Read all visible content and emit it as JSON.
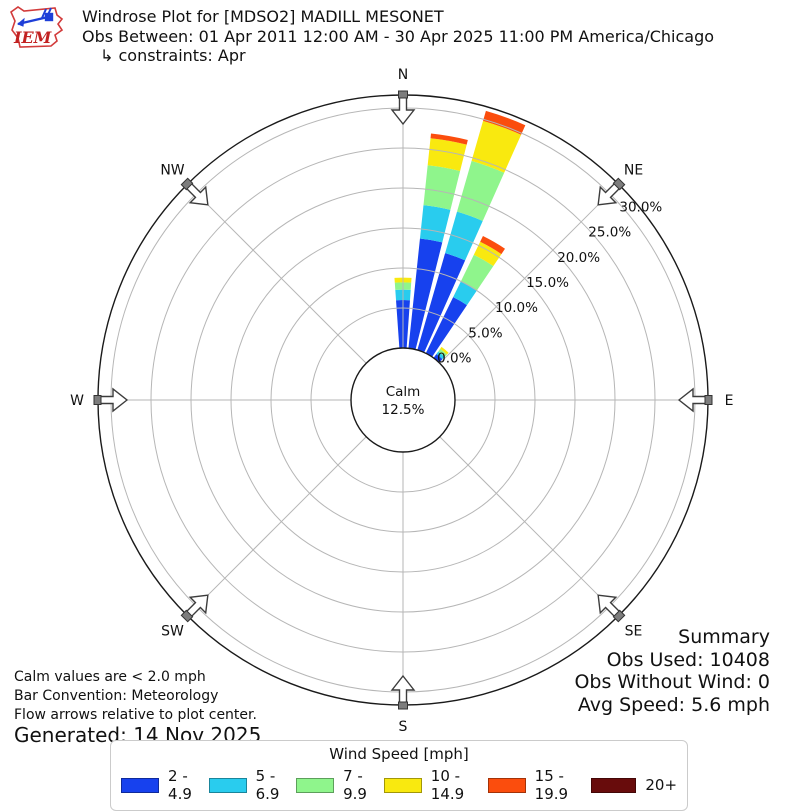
{
  "header": {
    "logo_text": "IEM",
    "title": "Windrose Plot for [MDSO2] MADILL MESONET",
    "subtitle": "Obs Between: 01 Apr 2011 12:00 AM - 30 Apr 2025 11:00 PM America/Chicago",
    "constraints": "↳ constraints: Apr"
  },
  "chart_data": {
    "type": "windrose",
    "units": "mph",
    "calm": {
      "label": "Calm",
      "value": "12.5%"
    },
    "compass_labels": [
      "N",
      "NE",
      "E",
      "SE",
      "S",
      "SW",
      "W",
      "NW"
    ],
    "grid_rings_pct": [
      5,
      10,
      15,
      20,
      25,
      30
    ],
    "ring_ticks": [
      0,
      5,
      10,
      15,
      20,
      25,
      30
    ],
    "ring_tick_labels": [
      "0.0%",
      "5.0%",
      "10.0%",
      "15.0%",
      "20.0%",
      "25.0%",
      "30.0%"
    ],
    "ring_label_azimuth_deg": 51,
    "rmax_pct": 31.6,
    "directions_deg": [
      0,
      10,
      20,
      30,
      40
    ],
    "sector_width_deg": 8,
    "series": [
      {
        "name": "2 - 4.9",
        "color": "#1741ee",
        "values": [
          6.0,
          13.8,
          12.6,
          7.8,
          0.6
        ]
      },
      {
        "name": "5 - 6.9",
        "color": "#29ccee",
        "values": [
          1.3,
          4.2,
          5.4,
          2.2,
          0.4
        ]
      },
      {
        "name": "7 - 9.9",
        "color": "#8ff58c",
        "values": [
          0.9,
          5.0,
          6.6,
          3.7,
          0.4
        ]
      },
      {
        "name": "10 - 14.9",
        "color": "#f9e90f",
        "values": [
          0.6,
          3.4,
          5.2,
          1.8,
          0.3
        ]
      },
      {
        "name": "15 - 19.9",
        "color": "#fb4d0d",
        "values": [
          0.0,
          0.6,
          1.3,
          0.8,
          0.0
        ]
      },
      {
        "name": "20+",
        "color": "#680c0c",
        "values": [
          0.0,
          0.0,
          0.0,
          0.0,
          0.0
        ]
      }
    ]
  },
  "footnotes": [
    "Calm values are < 2.0 mph",
    "Bar Convention: Meteorology",
    "Flow arrows relative to plot center."
  ],
  "generated": "Generated: 14 Nov 2025",
  "summary": {
    "title": "Summary",
    "obs_used": "Obs Used: 10408",
    "obs_without_wind": "Obs Without Wind: 0",
    "avg_speed": "Avg Speed: 5.6 mph"
  },
  "legend": {
    "title": "Wind Speed [mph]"
  }
}
